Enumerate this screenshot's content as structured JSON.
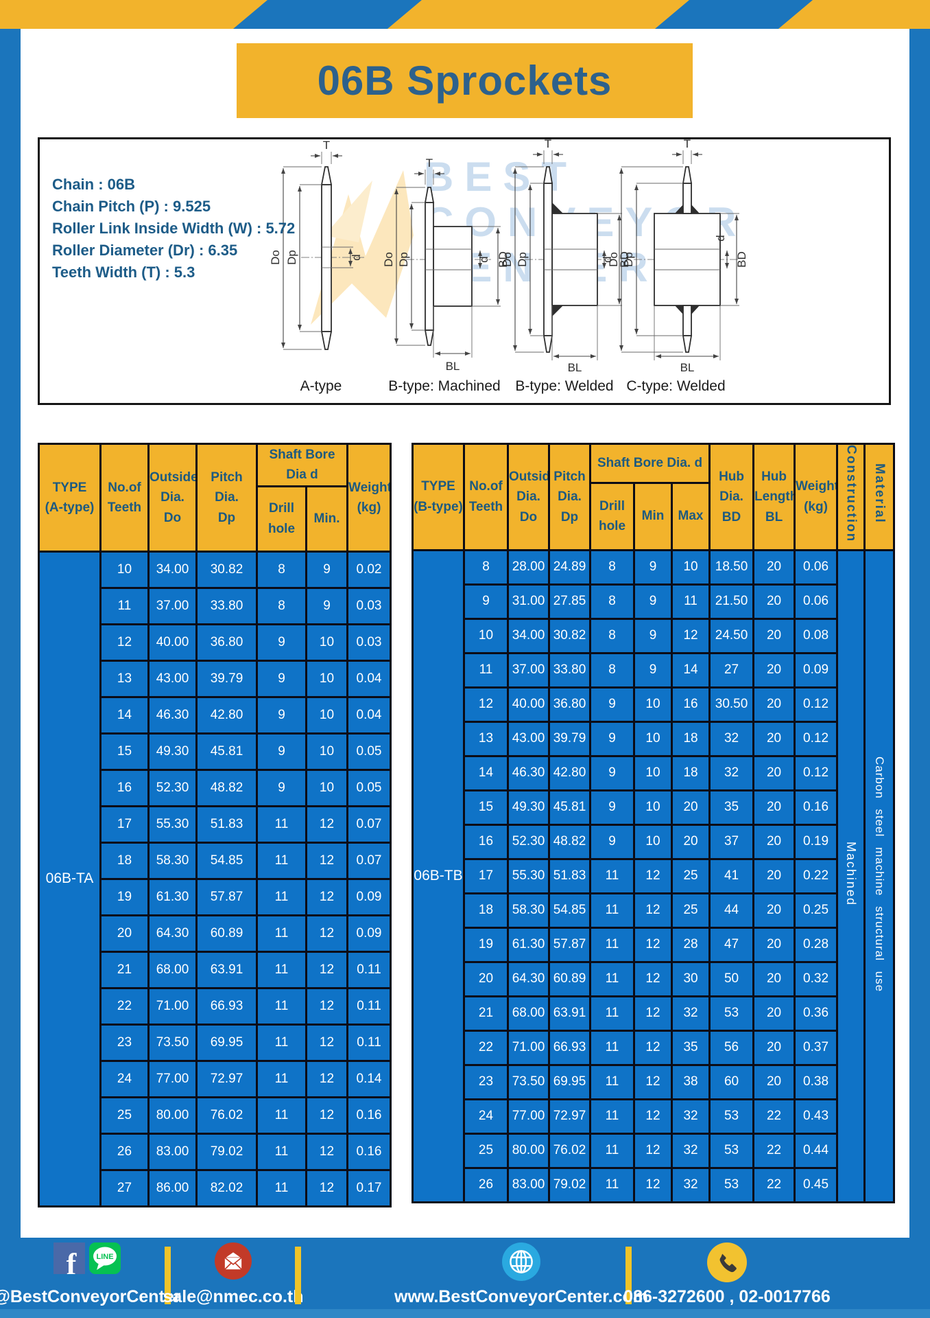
{
  "page": {
    "title": "06B Sprockets"
  },
  "specs": {
    "lines": [
      "Chain : 06B",
      "Chain Pitch (P) : 9.525",
      "Roller Link Inside Width (W) : 5.72",
      "Roller Diameter (Dr) : 6.35",
      "Teeth Width (T) : 5.3"
    ]
  },
  "diagram": {
    "watermark_lines": [
      "BEST",
      "CONVEYOR",
      "CENTER"
    ],
    "captions": [
      "A-type",
      "B-type: Machined",
      "B-type: Welded",
      "C-type: Welded"
    ],
    "labels": {
      "t": "T",
      "do": "Do",
      "dp": "Dp",
      "d": "d",
      "bd": "BD",
      "bl": "BL"
    }
  },
  "table_a": {
    "headers": {
      "type": "TYPE\n(A-type)",
      "teeth": "No.of\nTeeth",
      "outside": "Outside\nDia.\nDo",
      "pitch": "Pitch Dia.\nDp",
      "shaft_bore": "Shaft Bore Dia d",
      "drill_hole": "Drill hole",
      "min": "Min.",
      "weight": "Weight\n(kg)"
    },
    "type_label": "06B-TA",
    "rows": [
      [
        "10",
        "34.00",
        "30.82",
        "8",
        "9",
        "0.02"
      ],
      [
        "11",
        "37.00",
        "33.80",
        "8",
        "9",
        "0.03"
      ],
      [
        "12",
        "40.00",
        "36.80",
        "9",
        "10",
        "0.03"
      ],
      [
        "13",
        "43.00",
        "39.79",
        "9",
        "10",
        "0.04"
      ],
      [
        "14",
        "46.30",
        "42.80",
        "9",
        "10",
        "0.04"
      ],
      [
        "15",
        "49.30",
        "45.81",
        "9",
        "10",
        "0.05"
      ],
      [
        "16",
        "52.30",
        "48.82",
        "9",
        "10",
        "0.05"
      ],
      [
        "17",
        "55.30",
        "51.83",
        "11",
        "12",
        "0.07"
      ],
      [
        "18",
        "58.30",
        "54.85",
        "11",
        "12",
        "0.07"
      ],
      [
        "19",
        "61.30",
        "57.87",
        "11",
        "12",
        "0.09"
      ],
      [
        "20",
        "64.30",
        "60.89",
        "11",
        "12",
        "0.09"
      ],
      [
        "21",
        "68.00",
        "63.91",
        "11",
        "12",
        "0.11"
      ],
      [
        "22",
        "71.00",
        "66.93",
        "11",
        "12",
        "0.11"
      ],
      [
        "23",
        "73.50",
        "69.95",
        "11",
        "12",
        "0.11"
      ],
      [
        "24",
        "77.00",
        "72.97",
        "11",
        "12",
        "0.14"
      ],
      [
        "25",
        "80.00",
        "76.02",
        "11",
        "12",
        "0.16"
      ],
      [
        "26",
        "83.00",
        "79.02",
        "11",
        "12",
        "0.16"
      ],
      [
        "27",
        "86.00",
        "82.02",
        "11",
        "12",
        "0.17"
      ]
    ]
  },
  "table_b": {
    "headers": {
      "type": "TYPE\n(B-type)",
      "teeth": "No.of\nTeeth",
      "outside": "Outside\nDia.\nDo",
      "pitch": "Pitch\nDia.\nDp",
      "shaft_bore": "Shaft Bore Dia. d",
      "drill_hole": "Drill hole",
      "min": "Min",
      "max": "Max",
      "hub_dia": "Hub\nDia.\nBD",
      "hub_length": "Hub\nLength\nBL",
      "weight": "Weight\n(kg)",
      "construction": "Construction",
      "material": "Material"
    },
    "type_label": "06B-TB",
    "construction_value": "Machined",
    "material_value": "Carbon steel machine structural use",
    "rows": [
      [
        "8",
        "28.00",
        "24.89",
        "8",
        "9",
        "10",
        "18.50",
        "20",
        "0.06"
      ],
      [
        "9",
        "31.00",
        "27.85",
        "8",
        "9",
        "11",
        "21.50",
        "20",
        "0.06"
      ],
      [
        "10",
        "34.00",
        "30.82",
        "8",
        "9",
        "12",
        "24.50",
        "20",
        "0.08"
      ],
      [
        "11",
        "37.00",
        "33.80",
        "8",
        "9",
        "14",
        "27",
        "20",
        "0.09"
      ],
      [
        "12",
        "40.00",
        "36.80",
        "9",
        "10",
        "16",
        "30.50",
        "20",
        "0.12"
      ],
      [
        "13",
        "43.00",
        "39.79",
        "9",
        "10",
        "18",
        "32",
        "20",
        "0.12"
      ],
      [
        "14",
        "46.30",
        "42.80",
        "9",
        "10",
        "18",
        "32",
        "20",
        "0.12"
      ],
      [
        "15",
        "49.30",
        "45.81",
        "9",
        "10",
        "20",
        "35",
        "20",
        "0.16"
      ],
      [
        "16",
        "52.30",
        "48.82",
        "9",
        "10",
        "20",
        "37",
        "20",
        "0.19"
      ],
      [
        "17",
        "55.30",
        "51.83",
        "11",
        "12",
        "25",
        "41",
        "20",
        "0.22"
      ],
      [
        "18",
        "58.30",
        "54.85",
        "11",
        "12",
        "25",
        "44",
        "20",
        "0.25"
      ],
      [
        "19",
        "61.30",
        "57.87",
        "11",
        "12",
        "28",
        "47",
        "20",
        "0.28"
      ],
      [
        "20",
        "64.30",
        "60.89",
        "11",
        "12",
        "30",
        "50",
        "20",
        "0.32"
      ],
      [
        "21",
        "68.00",
        "63.91",
        "11",
        "12",
        "32",
        "53",
        "20",
        "0.36"
      ],
      [
        "22",
        "71.00",
        "66.93",
        "11",
        "12",
        "35",
        "56",
        "20",
        "0.37"
      ],
      [
        "23",
        "73.50",
        "69.95",
        "11",
        "12",
        "38",
        "60",
        "20",
        "0.38"
      ],
      [
        "24",
        "77.00",
        "72.97",
        "11",
        "12",
        "32",
        "53",
        "22",
        "0.43"
      ],
      [
        "25",
        "80.00",
        "76.02",
        "11",
        "12",
        "32",
        "53",
        "22",
        "0.44"
      ],
      [
        "26",
        "83.00",
        "79.02",
        "11",
        "12",
        "32",
        "53",
        "22",
        "0.45"
      ]
    ]
  },
  "footer": {
    "icons": {
      "facebook": "f",
      "line": "LINE"
    },
    "social_handle": "@BestConveyorCenter",
    "email": "sale@nmec.co.th",
    "website": "www.BestConveyorCenter.com",
    "phones": "086-3272600 , 02-0017766"
  }
}
